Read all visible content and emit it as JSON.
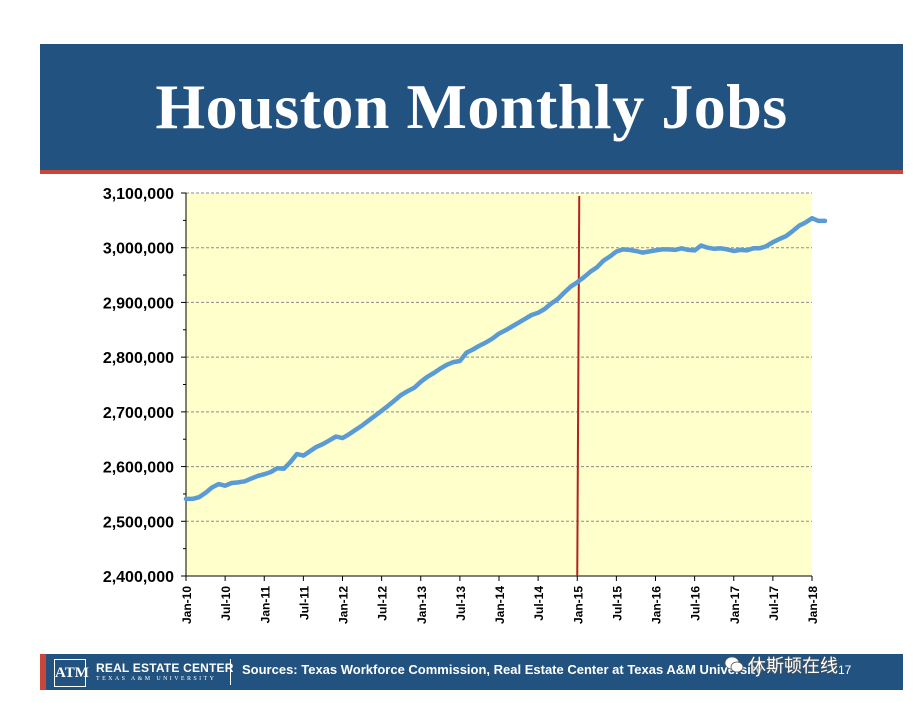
{
  "title": "Houston Monthly Jobs",
  "footer": {
    "logo_text": "ATM",
    "center_name": "REAL ESTATE CENTER",
    "center_sub": "TEXAS A&M UNIVERSITY",
    "sources": "Sources: Texas Workforce Commission, Real Estate Center at Texas A&M University",
    "slide_number": "17",
    "watermark": "休斯顿在线"
  },
  "colors": {
    "title_bar": "#22527f",
    "accent": "#c8463a",
    "plot_bg": "#ffffcc",
    "line": "#5b9bd5",
    "marker": "#b22222"
  },
  "chart_data": {
    "type": "line",
    "title": "",
    "xlabel": "",
    "ylabel": "",
    "ylim": [
      2400000,
      3100000
    ],
    "yticks": [
      "3,100,000",
      "3,000,000",
      "2,900,000",
      "2,800,000",
      "2,700,000",
      "2,600,000",
      "2,500,000",
      "2,400,000"
    ],
    "ytick_values": [
      3100000,
      3000000,
      2900000,
      2800000,
      2700000,
      2600000,
      2500000,
      2400000
    ],
    "xticks": [
      "Jan-10",
      "Jul-10",
      "Jan-11",
      "Jul-11",
      "Jan-12",
      "Jul-12",
      "Jan-13",
      "Jul-13",
      "Jan-14",
      "Jul-14",
      "Jan-15",
      "Jul-15",
      "Jan-16",
      "Jul-16",
      "Jan-17",
      "Jul-17",
      "Jan-18"
    ],
    "grid": true,
    "vertical_marker": "Jan-15",
    "series": [
      {
        "values": [
          2541000,
          2541000,
          2544000,
          2552000,
          2562000,
          2568000,
          2565000,
          2570000,
          2571000,
          2573000,
          2578000,
          2583000,
          2586000,
          2590000,
          2597000,
          2596000,
          2608000,
          2623000,
          2620000,
          2628000,
          2636000,
          2641000,
          2648000,
          2655000,
          2652000,
          2659000,
          2667000,
          2675000,
          2684000,
          2693000,
          2702000,
          2711000,
          2721000,
          2731000,
          2738000,
          2744000,
          2755000,
          2764000,
          2771000,
          2779000,
          2786000,
          2791000,
          2793000,
          2808000,
          2814000,
          2821000,
          2827000,
          2834000,
          2843000,
          2849000,
          2856000,
          2863000,
          2870000,
          2877000,
          2881000,
          2888000,
          2898000,
          2906000,
          2918000,
          2929000,
          2937000,
          2946000,
          2956000,
          2964000,
          2976000,
          2984000,
          2993000,
          2997000,
          2996000,
          2994000,
          2991000,
          2993000,
          2995000,
          2997000,
          2997000,
          2996000,
          2999000,
          2996000,
          2995000,
          3004000,
          3000000,
          2998000,
          2999000,
          2997000,
          2994000,
          2996000,
          2995000,
          2999000,
          2999000,
          3003000,
          3010000,
          3016000,
          3021000,
          3030000,
          3040000,
          3046000,
          3054000,
          3049000,
          3049000
        ]
      }
    ]
  }
}
